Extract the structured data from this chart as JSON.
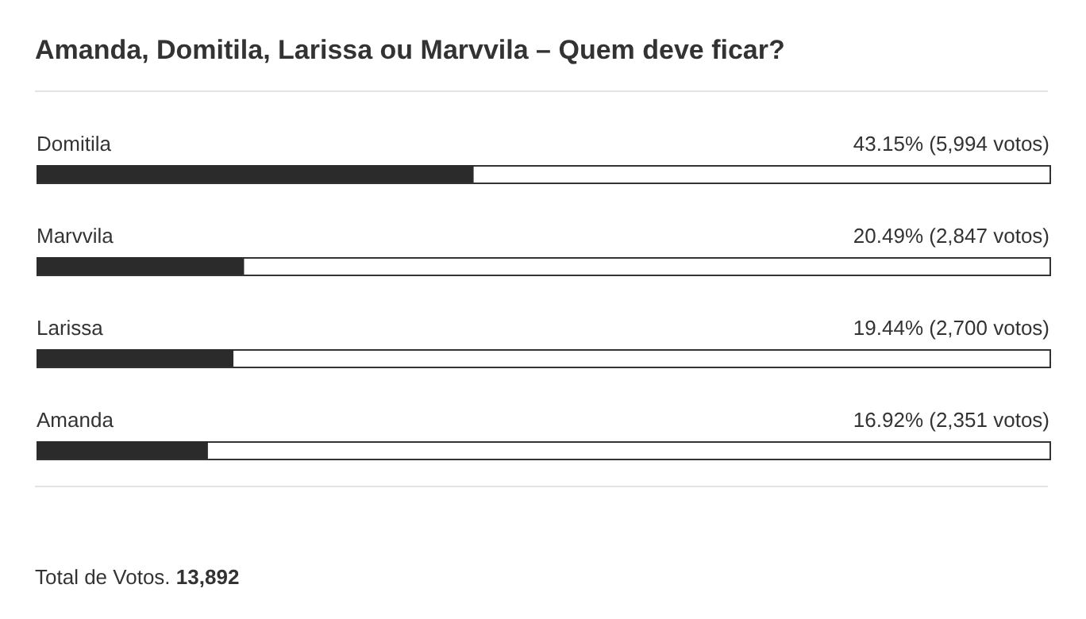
{
  "chart_data": {
    "type": "bar",
    "orientation": "horizontal",
    "title": "Amanda, Domitila, Larissa ou Marvvila – Quem deve ficar?",
    "categories": [
      "Domitila",
      "Marvvila",
      "Larissa",
      "Amanda"
    ],
    "values": [
      43.15,
      20.49,
      19.44,
      16.92
    ],
    "value_labels": [
      "43.15%  (5,994 votos)",
      "20.49%  (2,847 votos)",
      "19.44%  (2,700 votos)",
      "16.92%  (2,351 votos)"
    ],
    "color": "#2b2b2b",
    "xlim": [
      0,
      100
    ],
    "tick_labels": "y",
    "grid": false,
    "annotations": [
      "Total de Votos. 13,892"
    ]
  }
}
